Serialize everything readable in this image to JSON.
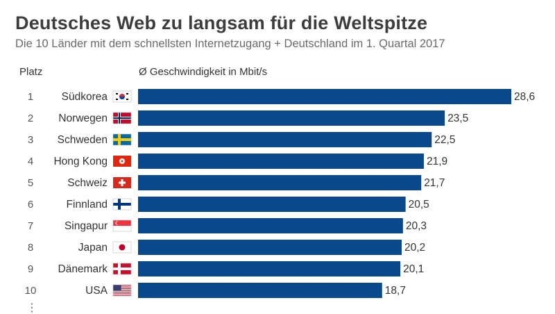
{
  "chart_data": {
    "type": "bar",
    "orientation": "horizontal",
    "title": "Deutsches Web zu langsam für die Weltspitze",
    "subtitle": "Die 10 Länder mit dem schnellsten Internetzugang + Deutschland im 1. Quartal 2017",
    "rank_header": "Platz",
    "value_header": "Ø Geschwindigkeit in Mbit/s",
    "categories": [
      "Südkorea",
      "Norwegen",
      "Schweden",
      "Hong Kong",
      "Schweiz",
      "Finnland",
      "Singapur",
      "Japan",
      "Dänemark",
      "USA"
    ],
    "ranks": [
      "1",
      "2",
      "3",
      "4",
      "5",
      "6",
      "7",
      "8",
      "9",
      "10"
    ],
    "values": [
      28.6,
      23.5,
      22.5,
      21.9,
      21.7,
      20.5,
      20.3,
      20.2,
      20.1,
      18.7
    ],
    "value_labels": [
      "28,6",
      "23,5",
      "22,5",
      "21,9",
      "21,7",
      "20,5",
      "20,3",
      "20,2",
      "20,1",
      "18,7"
    ],
    "flags": [
      "kr",
      "no",
      "se",
      "hk",
      "ch",
      "fi",
      "sg",
      "jp",
      "dk",
      "us"
    ],
    "bar_color": "#0a4a8c",
    "xlim": [
      0,
      28.6
    ],
    "grid": false,
    "legend": "none"
  },
  "continuation": "⋮"
}
